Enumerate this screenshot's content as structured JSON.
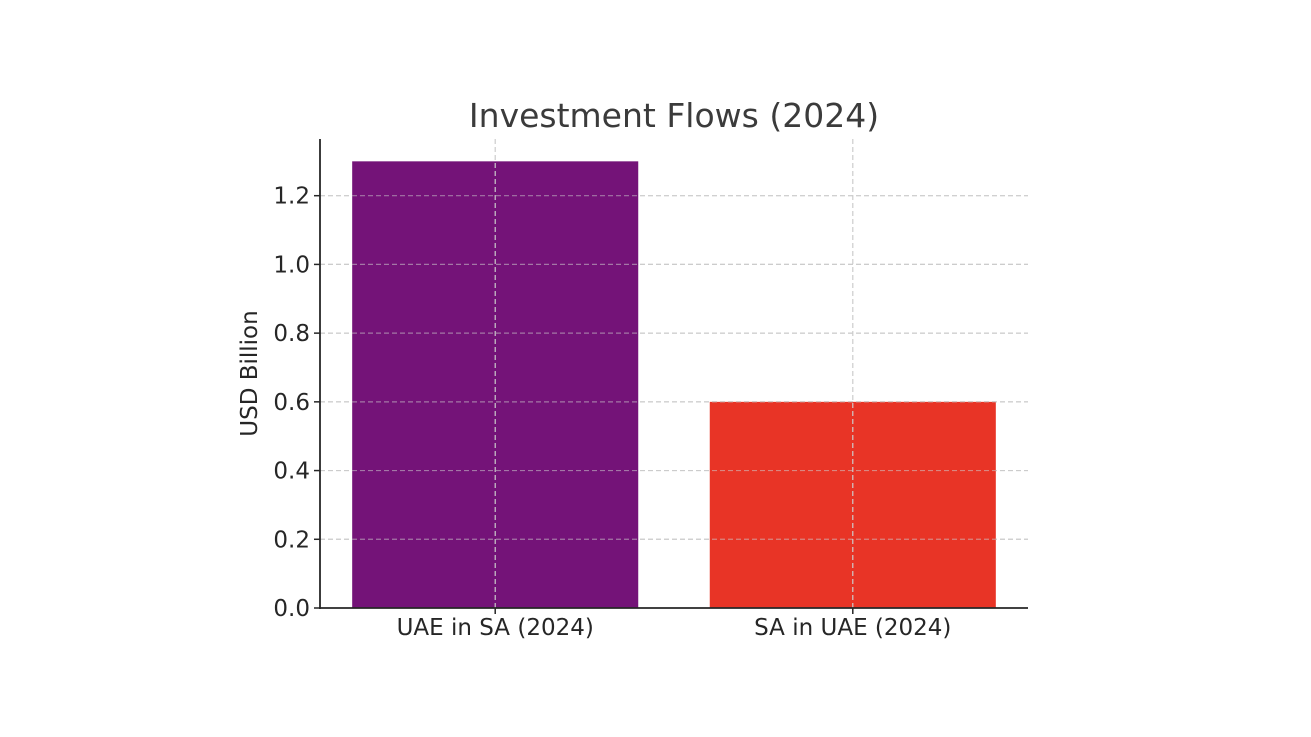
{
  "chart_data": {
    "type": "bar",
    "title": "Investment Flows (2024)",
    "xlabel": "",
    "ylabel": "USD Billion",
    "categories": [
      "UAE in SA (2024)",
      "SA in UAE (2024)"
    ],
    "values": [
      1.3,
      0.6
    ],
    "bar_colors": [
      "#741378",
      "#e83426"
    ],
    "ylim": [
      0,
      1.365
    ],
    "yticks": [
      0.0,
      0.2,
      0.4,
      0.6,
      0.8,
      1.0,
      1.2
    ],
    "ytick_labels": [
      "0.0",
      "0.2",
      "0.4",
      "0.6",
      "0.8",
      "1.0",
      "1.2"
    ],
    "grid": true,
    "legend": false
  }
}
